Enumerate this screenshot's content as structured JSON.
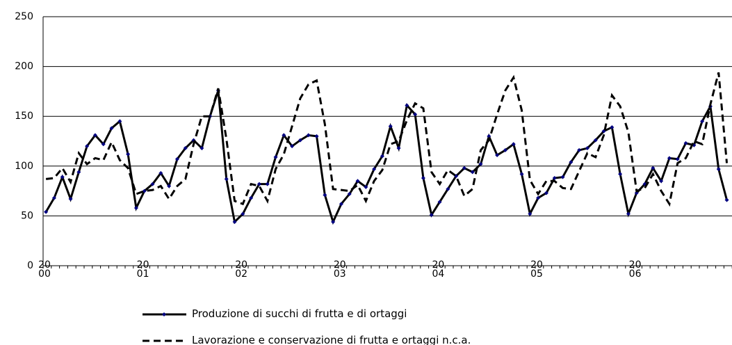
{
  "chart_data": {
    "type": "line",
    "categories": [
      "20 00",
      null,
      null,
      null,
      null,
      null,
      null,
      null,
      null,
      null,
      null,
      null,
      "20 01",
      null,
      null,
      null,
      null,
      null,
      null,
      null,
      null,
      null,
      null,
      null,
      "20 02",
      null,
      null,
      null,
      null,
      null,
      null,
      null,
      null,
      null,
      null,
      null,
      "20 03",
      null,
      null,
      null,
      null,
      null,
      null,
      null,
      null,
      null,
      null,
      null,
      "20 04",
      null,
      null,
      null,
      null,
      null,
      null,
      null,
      null,
      null,
      null,
      null,
      "20 05",
      null,
      null,
      null,
      null,
      null,
      null,
      null,
      null,
      null,
      null,
      null,
      "20 06",
      null,
      null,
      null,
      null,
      null,
      null,
      null,
      null,
      null,
      null,
      null
    ],
    "series": [
      {
        "name": "Produzione di succhi di frutta e di ortaggi",
        "color": "#000000",
        "marker_color": "#000080",
        "dash": false,
        "values": [
          54,
          68,
          89,
          67,
          94,
          120,
          131,
          122,
          138,
          145,
          112,
          58,
          75,
          82,
          93,
          80,
          107,
          118,
          126,
          118,
          150,
          176,
          87,
          44,
          52,
          68,
          82,
          82,
          109,
          131,
          120,
          126,
          131,
          130,
          71,
          44,
          62,
          72,
          85,
          79,
          97,
          110,
          140,
          118,
          161,
          152,
          88,
          51,
          64,
          77,
          90,
          98,
          94,
          102,
          130,
          111,
          116,
          122,
          92,
          52,
          68,
          73,
          88,
          89,
          104,
          116,
          118,
          126,
          135,
          139,
          92,
          52,
          73,
          82,
          98,
          85,
          108,
          107,
          123,
          121,
          145,
          160,
          97,
          66
        ]
      },
      {
        "name": "Lavorazione e conservazione di frutta e ortaggi n.c.a.",
        "color": "#000000",
        "dash": true,
        "values": [
          87,
          88,
          98,
          84,
          113,
          102,
          108,
          106,
          124,
          106,
          98,
          72,
          75,
          76,
          80,
          67,
          80,
          87,
          122,
          150,
          150,
          178,
          127,
          65,
          62,
          82,
          80,
          65,
          97,
          112,
          140,
          168,
          182,
          186,
          142,
          77,
          76,
          75,
          81,
          65,
          85,
          96,
          122,
          125,
          146,
          163,
          158,
          94,
          82,
          96,
          90,
          70,
          77,
          116,
          126,
          152,
          176,
          189,
          156,
          86,
          72,
          85,
          85,
          78,
          77,
          95,
          113,
          109,
          131,
          171,
          160,
          134,
          75,
          78,
          92,
          75,
          62,
          103,
          108,
          125,
          122,
          162,
          194,
          103
        ]
      }
    ],
    "ylim": [
      0,
      250
    ],
    "yticks": [
      0,
      50,
      100,
      150,
      200,
      250
    ],
    "grid": true
  }
}
